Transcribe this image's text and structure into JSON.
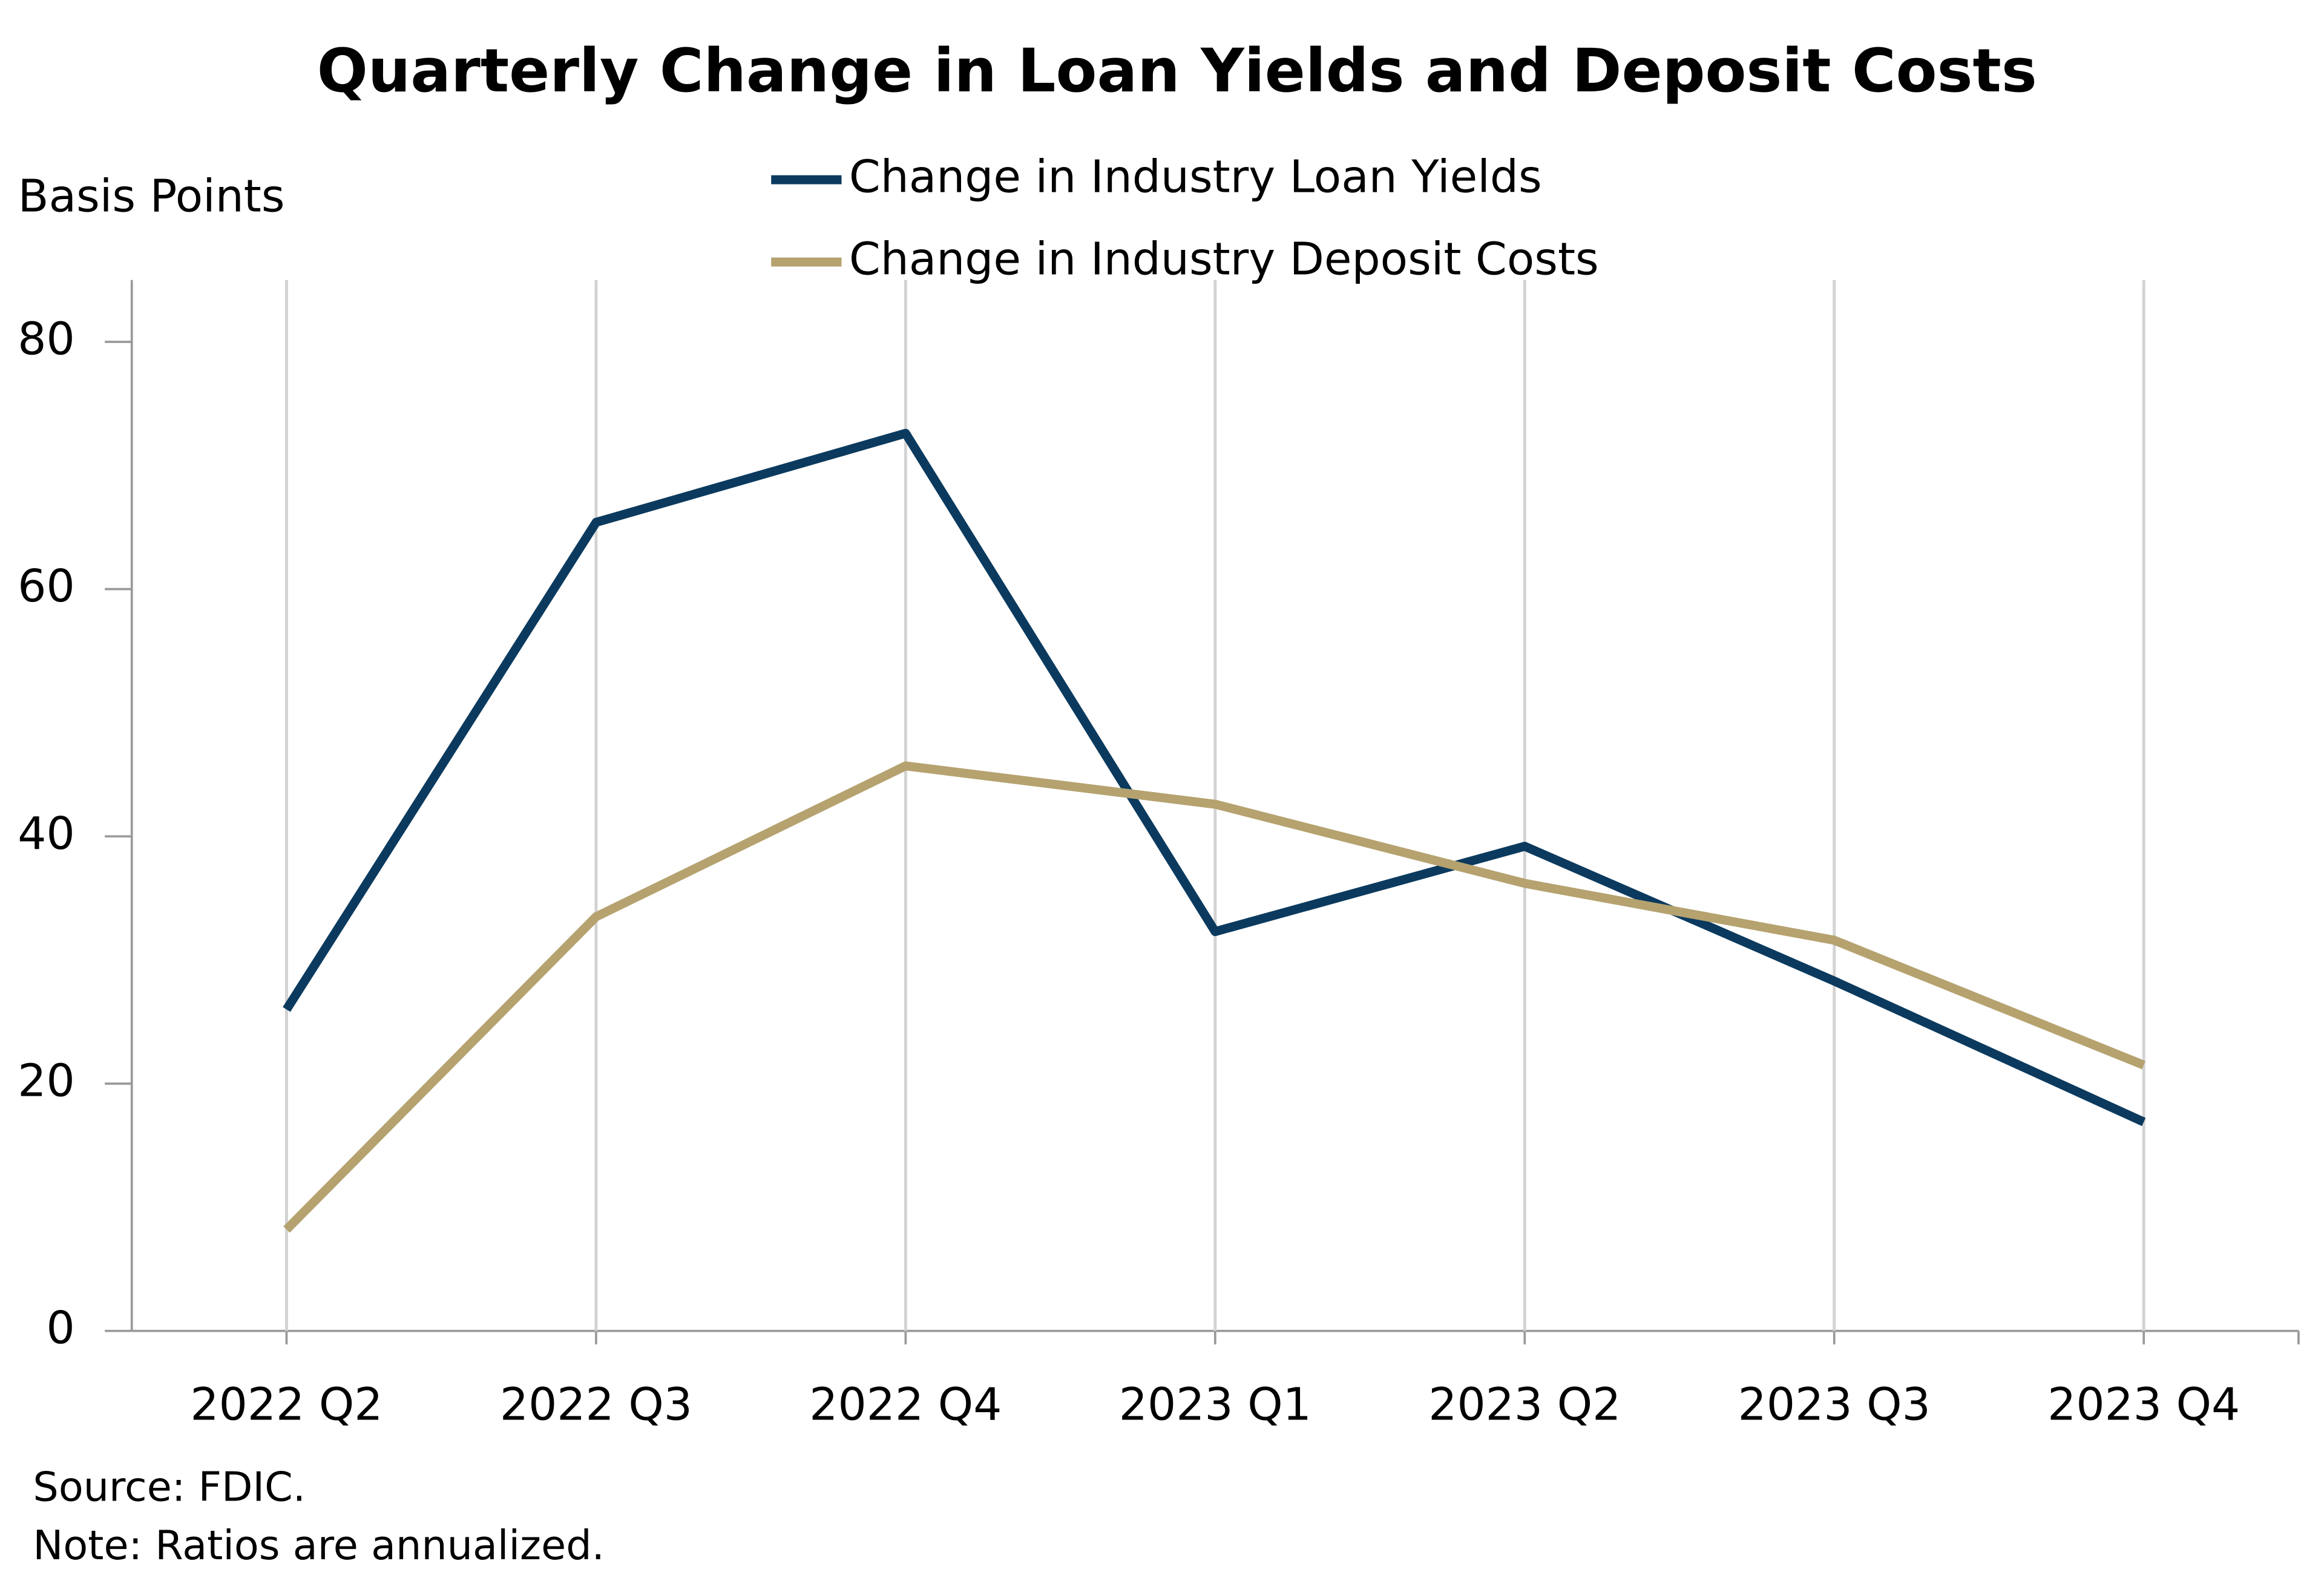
{
  "chart_data": {
    "type": "line",
    "title": "Quarterly Change in Loan Yields and Deposit Costs",
    "y_axis_label": "Basis Points",
    "categories": [
      "2022 Q2",
      "2022 Q3",
      "2022 Q4",
      "2023 Q1",
      "2023 Q2",
      "2023 Q3",
      "2023 Q4"
    ],
    "series": [
      {
        "name": "Change in Industry Loan Yields",
        "color": "#0b3a5e",
        "values": [
          26.0,
          65.4,
          72.6,
          32.3,
          39.2,
          28.3,
          16.9
        ]
      },
      {
        "name": "Change in Industry Deposit Costs",
        "color": "#b5a26f",
        "values": [
          8.2,
          33.5,
          45.7,
          42.6,
          36.2,
          31.6,
          21.5
        ]
      }
    ],
    "ylim": [
      0,
      85
    ],
    "yticks": [
      0,
      20,
      40,
      60,
      80
    ],
    "grid": true,
    "source": "Source: FDIC.",
    "note": "Note: Ratios are annualized."
  }
}
